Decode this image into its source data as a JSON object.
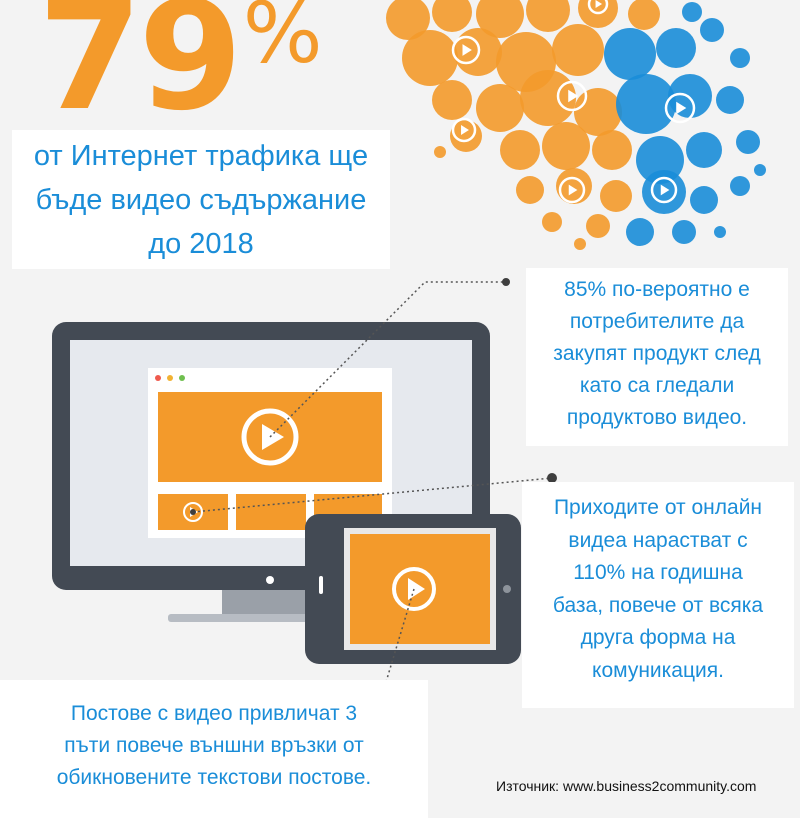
{
  "colors": {
    "orange": "#f39a2b",
    "orange_dark": "#f0801c",
    "blue": "#1a8dd8",
    "monitor_frame": "#434a54"
  },
  "icons": [
    "play-icon",
    "circle-pattern",
    "desktop-monitor",
    "tablet-device",
    "dotted-connector"
  ],
  "stat": {
    "number": "79",
    "unit": "%"
  },
  "headline": [
    "от Интернет трафика ще",
    "бъде видео съдържание",
    "до 2018"
  ],
  "facts": [
    {
      "lines": [
        "85% по-вероятно е",
        "потребителите да",
        "закупят продукт след",
        "като са гледали",
        "продуктово видео."
      ]
    },
    {
      "lines": [
        "Приходите от онлайн",
        "видеа нарастват с",
        "110% на годишна",
        "база, повече от всяка",
        "друга форма на",
        "комуникация."
      ]
    },
    {
      "lines": [
        "Постове с видео привличат 3",
        "пъти повече външни връзки от",
        "обикновените текстови постове."
      ]
    }
  ],
  "source": "Източник: www.business2community.com"
}
